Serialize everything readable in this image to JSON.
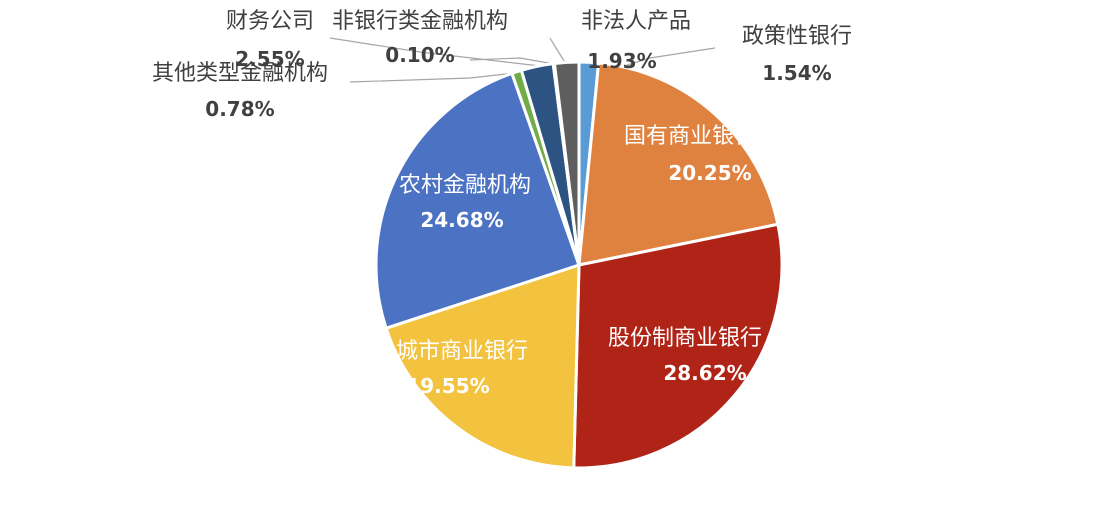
{
  "chart_data": {
    "type": "pie",
    "title": "",
    "legend": "none",
    "slices": [
      {
        "name": "政策性银行",
        "value": 1.54,
        "label": "1.54%",
        "color": "#5B9BD5"
      },
      {
        "name": "国有商业银行",
        "value": 20.25,
        "label": "20.25%",
        "color": "#E0823F"
      },
      {
        "name": "股份制商业银行",
        "value": 28.62,
        "label": "28.62%",
        "color": "#B02317"
      },
      {
        "name": "城市商业银行",
        "value": 19.55,
        "label": "19.55%",
        "color": "#F3C23E"
      },
      {
        "name": "农村金融机构",
        "value": 24.68,
        "label": "24.68%",
        "color": "#4C72C4"
      },
      {
        "name": "其他类型金融机构",
        "value": 0.78,
        "label": "0.78%",
        "color": "#70AD47"
      },
      {
        "name": "财务公司",
        "value": 2.55,
        "label": "2.55%",
        "color": "#2C5381"
      },
      {
        "name": "非银行类金融机构",
        "value": 0.1,
        "label": "0.10%",
        "color": "#9E480E"
      },
      {
        "name": "非法人产品",
        "value": 1.93,
        "label": "1.93%",
        "color": "#5E5E5E"
      }
    ]
  }
}
